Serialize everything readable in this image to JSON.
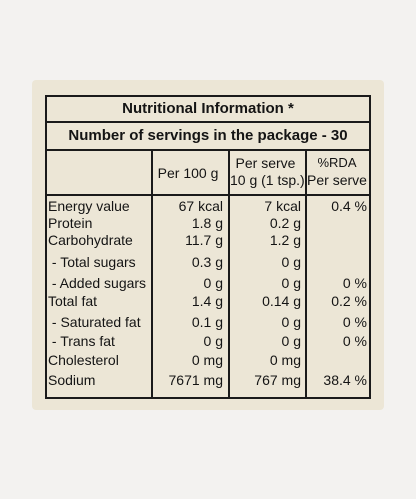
{
  "header": {
    "title": "Nutritional Information *",
    "servings": "Number of servings in the package - 30"
  },
  "table": {
    "headers": [
      [
        "Per 100 g"
      ],
      [
        "Per serve",
        "10 g (1 tsp.)"
      ],
      [
        "%RDA",
        "Per serve"
      ]
    ],
    "rows": [
      [
        "Energy value",
        "67 kcal",
        "7 kcal",
        "0.4 %"
      ],
      [
        "Protein",
        "1.8 g",
        "0.2 g"
      ],
      [
        "Carbohydrate",
        "11.7 g",
        "1.2 g"
      ],
      [
        " - Total sugars",
        "0.3 g",
        "0 g"
      ],
      [
        " - Added sugars",
        "0 g",
        "0 g",
        "0 %"
      ],
      [
        "Total fat",
        "1.4 g",
        "0.14 g",
        "0.2 %"
      ],
      [
        " - Saturated fat",
        "0.1 g",
        "0 g",
        "0 %"
      ],
      [
        " - Trans fat",
        "0 g",
        "0 g",
        "0 %"
      ],
      [
        "Cholesterol",
        "0 mg",
        "0 mg"
      ],
      [
        "Sodium",
        "7671 mg",
        "767 mg",
        "38.4 %"
      ]
    ]
  }
}
